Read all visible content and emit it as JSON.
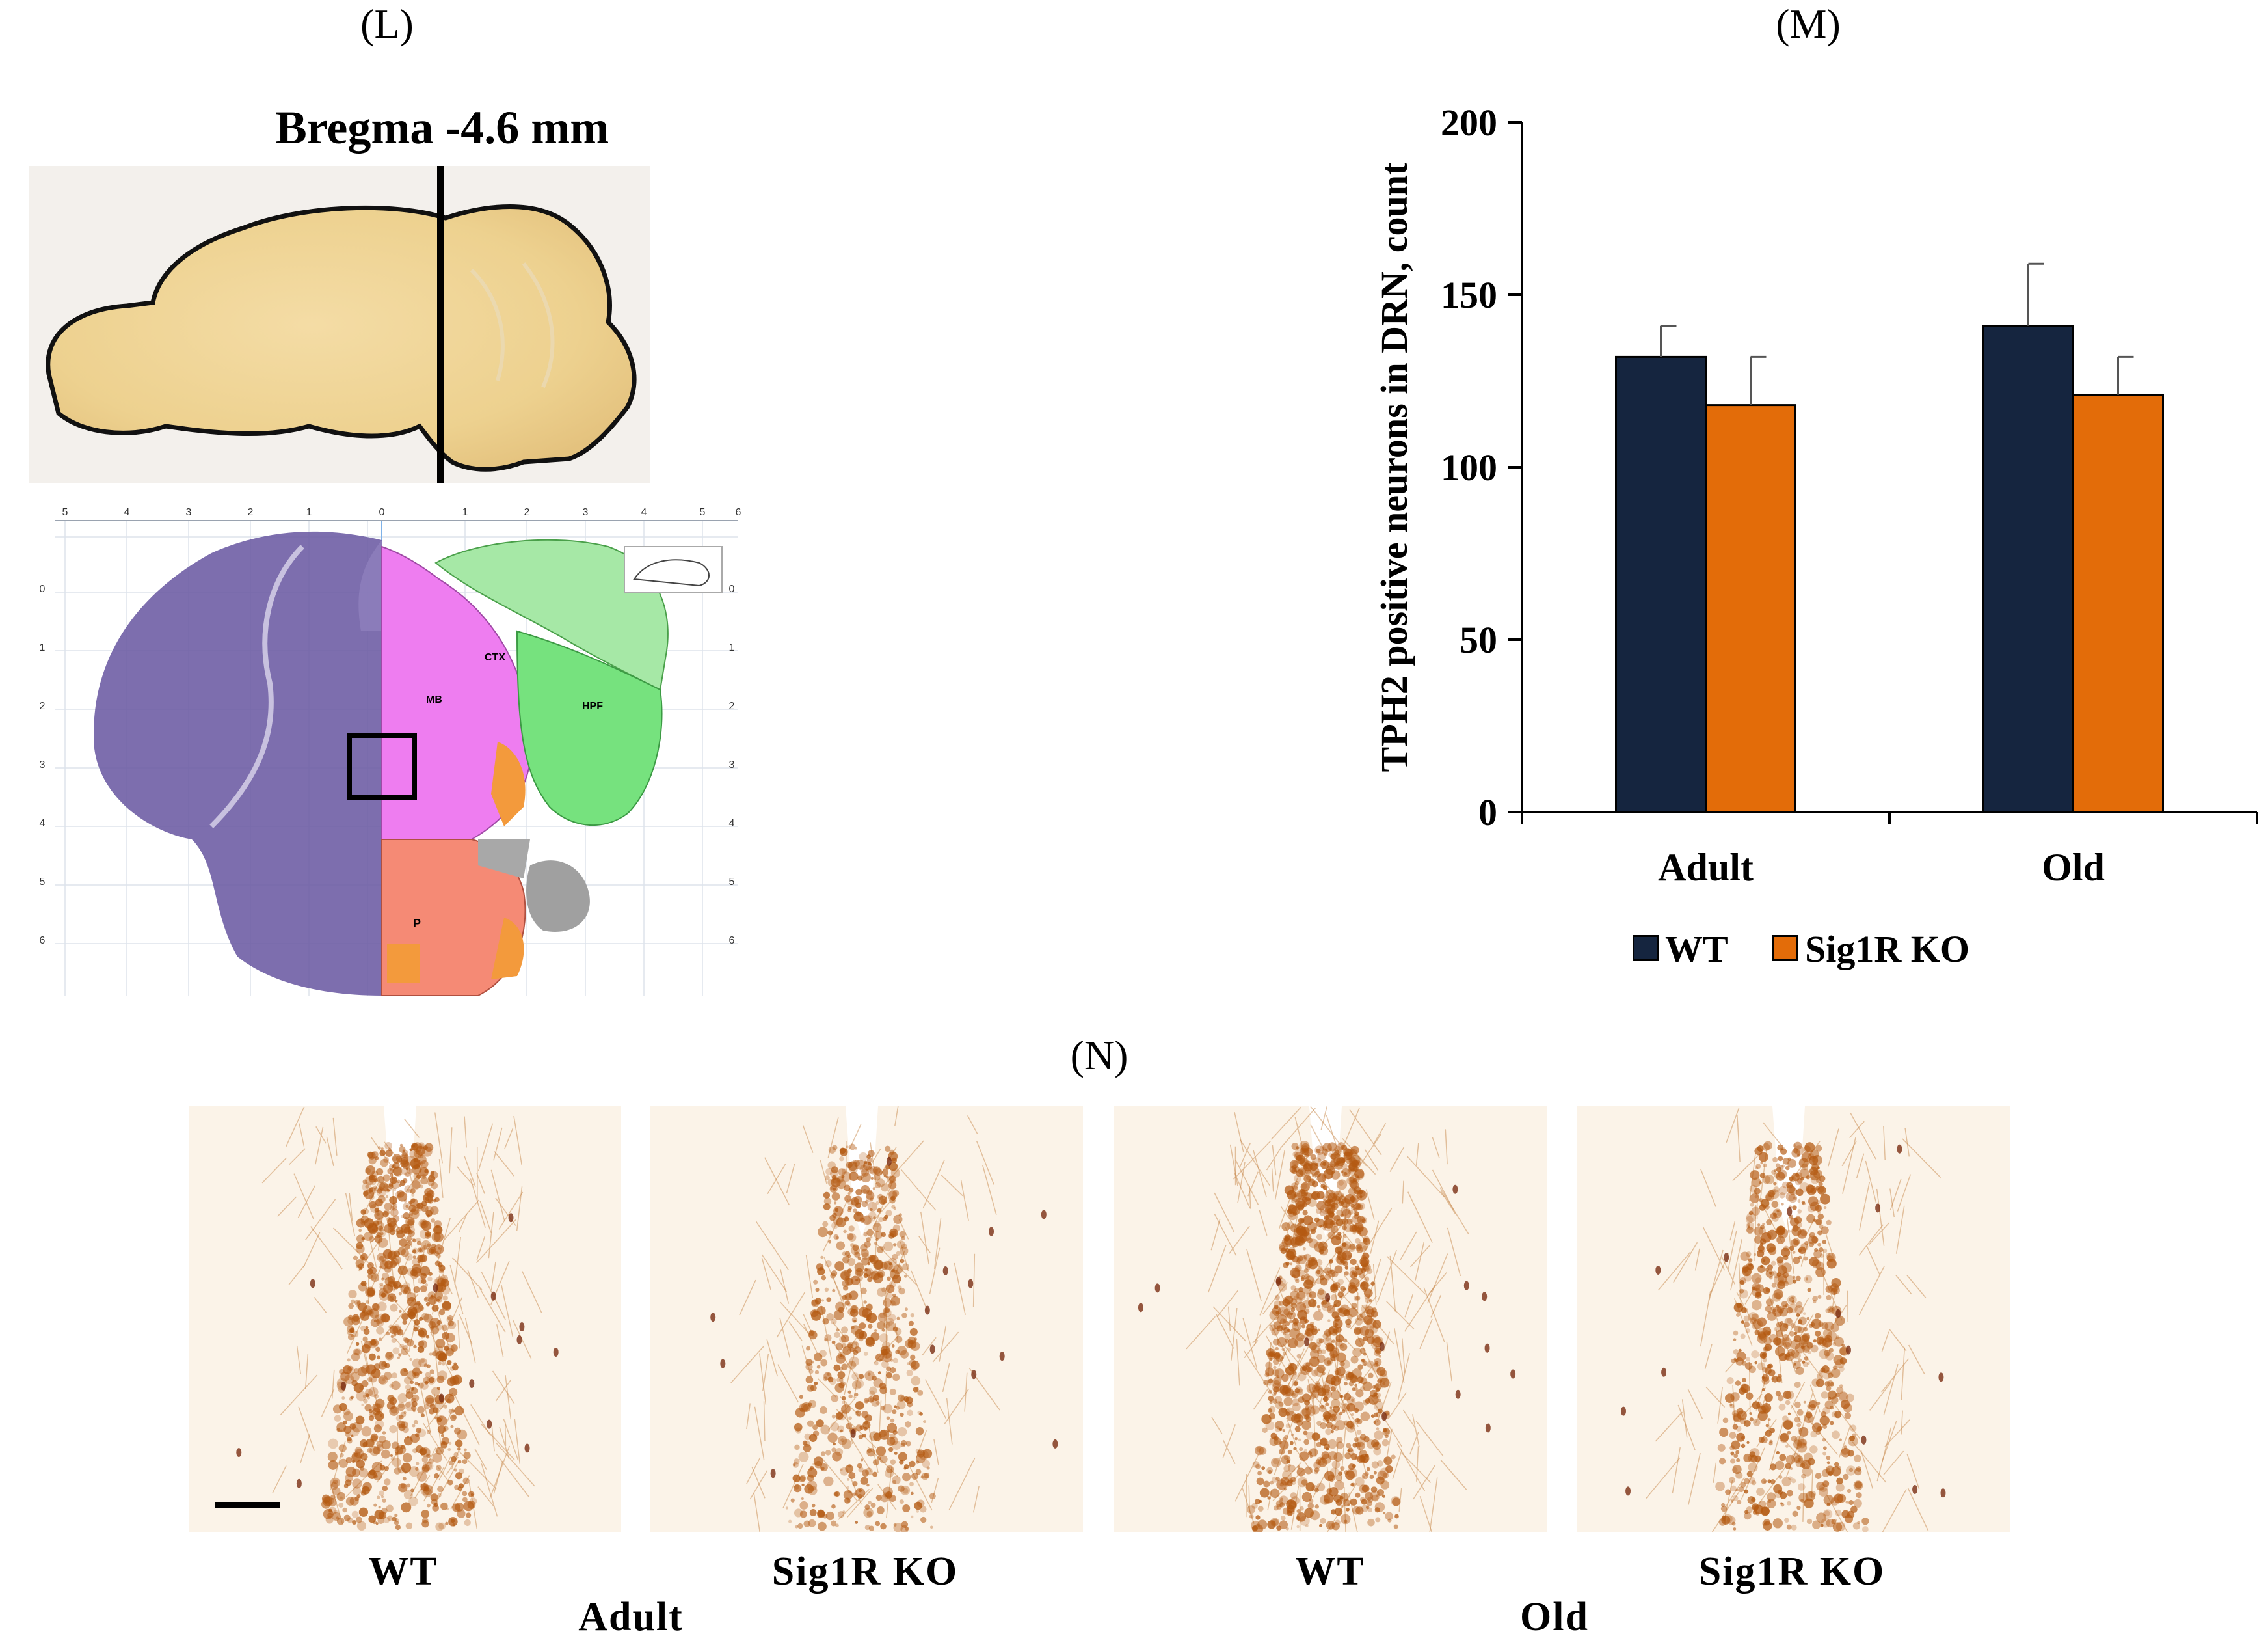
{
  "panels": {
    "L": {
      "label": "(L)",
      "bregma": "Bregma -4.6 mm"
    },
    "M": {
      "label": "(M)"
    },
    "N": {
      "label": "(N)"
    }
  },
  "atlas": {
    "top_ticks": [
      "5",
      "4",
      "3",
      "2",
      "1",
      "0",
      "1",
      "2",
      "3",
      "4",
      "5",
      "6"
    ],
    "side_ticks": [
      "0",
      "1",
      "2",
      "3",
      "4",
      "5",
      "6"
    ],
    "region_labels": [
      "CTX",
      "HPF",
      "MB",
      "P"
    ]
  },
  "chart_data": {
    "type": "bar",
    "categories": [
      "Adult",
      "Old"
    ],
    "series": [
      {
        "name": "WT",
        "values": [
          132,
          141
        ],
        "errors": [
          9,
          18
        ],
        "color": "#15253f"
      },
      {
        "name": "Sig1R KO",
        "values": [
          118,
          121
        ],
        "errors": [
          14,
          11
        ],
        "color": "#e36c09"
      }
    ],
    "ylabel": "TPH2 positive neurons in DRN, count",
    "ylim": [
      0,
      200
    ],
    "yticks": [
      0,
      50,
      100,
      150,
      200
    ],
    "legend_position": "bottom-center",
    "grid": false
  },
  "micrographs": {
    "captions": [
      "WT",
      "Sig1R KO",
      "WT",
      "Sig1R KO"
    ],
    "groups": [
      "Adult",
      "Old"
    ],
    "stain_color": "#b45a12"
  }
}
